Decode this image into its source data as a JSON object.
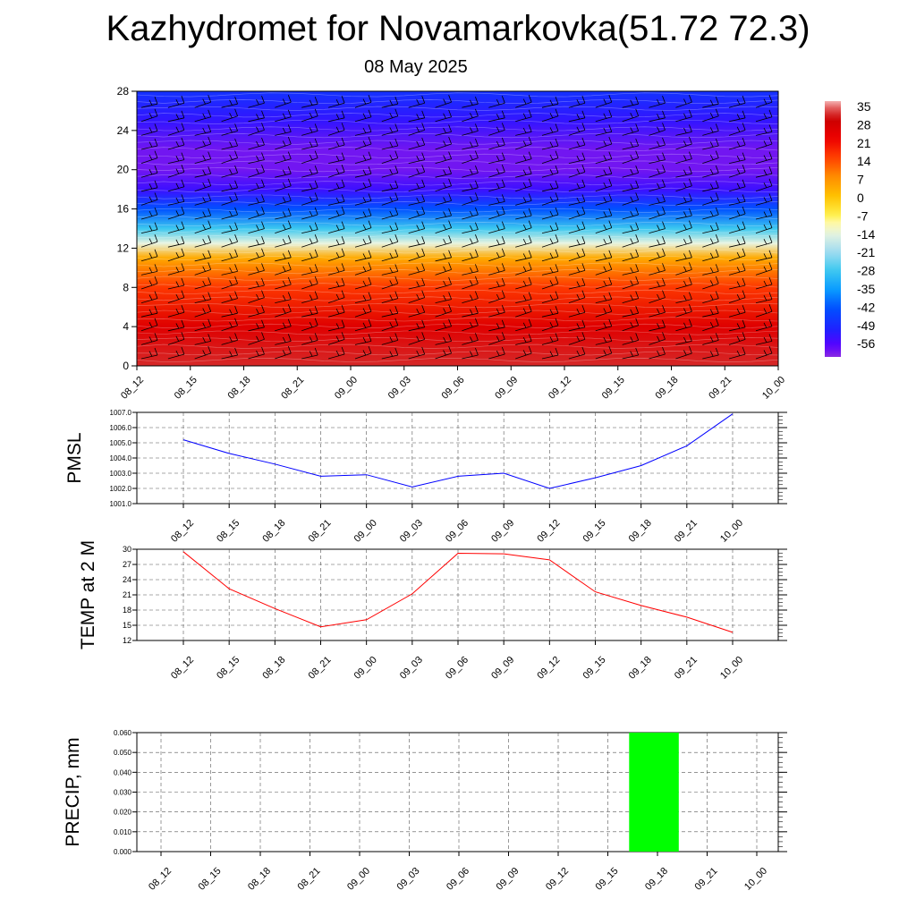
{
  "header": {
    "title": "Kazhydromet for Novamarkovka(51.72 72.3)",
    "date": "08 May 2025"
  },
  "chart_data": [
    {
      "type": "heatmap",
      "xlabel": "",
      "ylabel": "",
      "x_ticks": [
        "08_12",
        "08_15",
        "08_18",
        "08_21",
        "09_00",
        "09_03",
        "09_06",
        "09_09",
        "09_12",
        "09_15",
        "09_18",
        "09_21",
        "10_00"
      ],
      "y_ticks": [
        0,
        4,
        8,
        12,
        16,
        20,
        24,
        28
      ],
      "ylim": [
        0,
        28
      ],
      "colorbar_labels": [
        35,
        28,
        21,
        14,
        7,
        0,
        -7,
        -14,
        -21,
        -28,
        -35,
        -42,
        -49,
        -56
      ],
      "temperature_profile": [
        {
          "y": 0,
          "value": 30
        },
        {
          "y": 4,
          "value": 24
        },
        {
          "y": 8,
          "value": 15
        },
        {
          "y": 11,
          "value": 3
        },
        {
          "y": 12.5,
          "value": -14
        },
        {
          "y": 14,
          "value": -28
        },
        {
          "y": 16,
          "value": -42
        },
        {
          "y": 18,
          "value": -53
        },
        {
          "y": 20,
          "value": -58
        },
        {
          "y": 22,
          "value": -58
        },
        {
          "y": 25,
          "value": -52
        },
        {
          "y": 28,
          "value": -47
        }
      ],
      "wind_barbs": "present"
    },
    {
      "type": "line",
      "ylabel": "PMSL",
      "x": [
        "08_12",
        "08_15",
        "08_18",
        "08_21",
        "09_00",
        "09_03",
        "09_06",
        "09_09",
        "09_12",
        "09_15",
        "09_18",
        "09_21",
        "10_00"
      ],
      "y_ticks": [
        "1001.0",
        "1002.0",
        "1003.0",
        "1004.0",
        "1005.0",
        "1006.0",
        "1007.0"
      ],
      "ylim": [
        1001.0,
        1007.0
      ],
      "values": [
        1005.2,
        1004.3,
        1003.6,
        1002.8,
        1002.9,
        1002.1,
        1002.8,
        1003.0,
        1002.0,
        1002.7,
        1003.5,
        1004.8,
        1006.9
      ],
      "color": "#0000ff",
      "grid": true
    },
    {
      "type": "line",
      "ylabel": "TEMP at 2 M",
      "x": [
        "08_12",
        "08_15",
        "08_18",
        "08_21",
        "09_00",
        "09_03",
        "09_06",
        "09_09",
        "09_12",
        "09_15",
        "09_18",
        "09_21",
        "10_00"
      ],
      "y_ticks": [
        "12",
        "15",
        "18",
        "21",
        "24",
        "27",
        "30"
      ],
      "ylim": [
        12,
        30
      ],
      "values": [
        29.5,
        22.2,
        18.3,
        14.7,
        16.1,
        21.2,
        29.2,
        29.1,
        27.9,
        21.6,
        18.9,
        16.6,
        13.6
      ],
      "color": "#ff0000",
      "grid": true
    },
    {
      "type": "bar",
      "ylabel": "PRECIP, mm",
      "categories": [
        "08_12",
        "08_15",
        "08_18",
        "08_21",
        "09_00",
        "09_03",
        "09_06",
        "09_09",
        "09_12",
        "09_15",
        "09_18",
        "09_21",
        "10_00"
      ],
      "y_ticks": [
        "0.000",
        "0.010",
        "0.020",
        "0.030",
        "0.040",
        "0.050",
        "0.060"
      ],
      "ylim": [
        0.0,
        0.06
      ],
      "values": [
        0,
        0,
        0,
        0,
        0,
        0,
        0,
        0,
        0,
        0,
        0.06,
        0,
        0
      ],
      "color": "#00ff00",
      "grid": true
    }
  ]
}
